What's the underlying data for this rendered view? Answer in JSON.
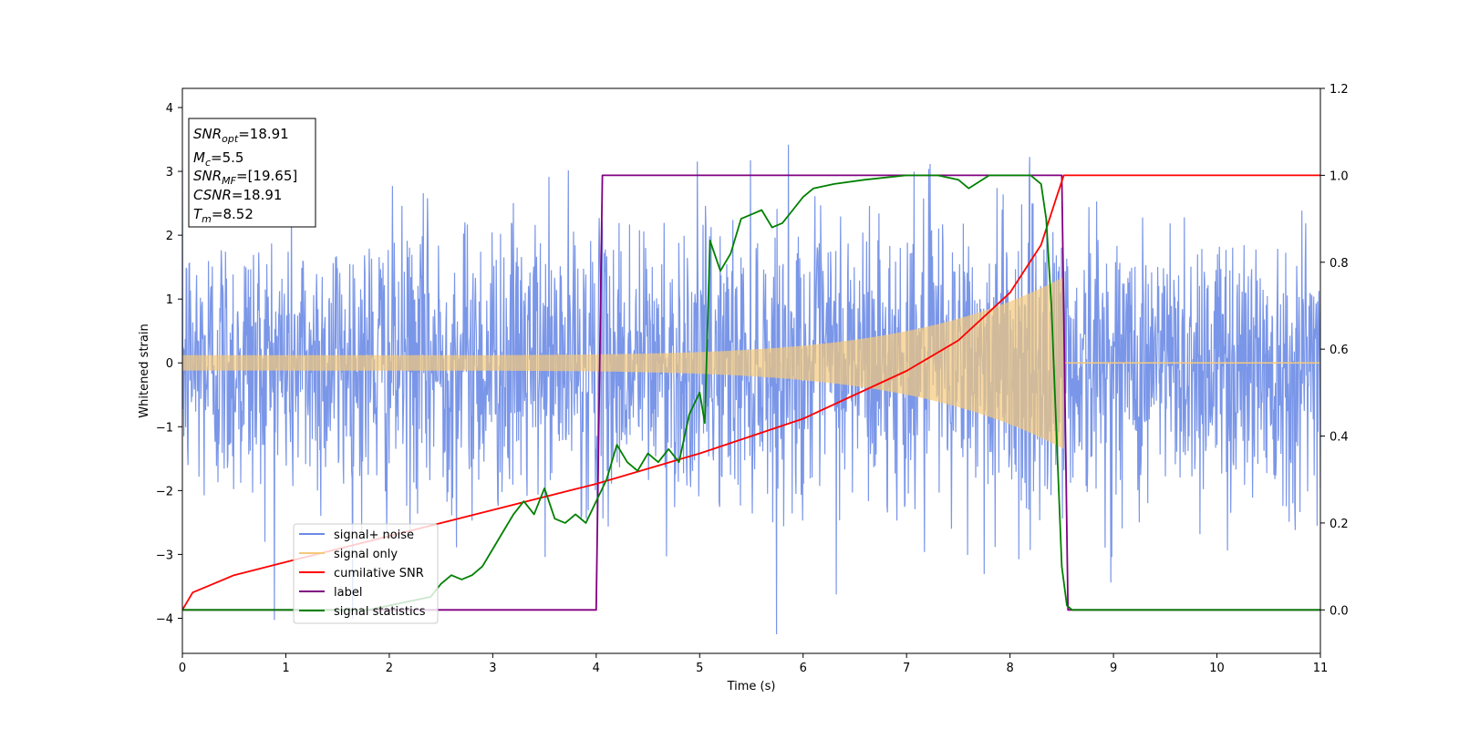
{
  "chart_data": {
    "type": "line",
    "xlabel": "Time (s)",
    "ylabel": "Whitened strain",
    "xlim": [
      0,
      11
    ],
    "ylim_left": [
      -4.55,
      4.3
    ],
    "ylim_right": [
      -0.1,
      1.2
    ],
    "x_ticks": [
      0,
      1,
      2,
      3,
      4,
      5,
      6,
      7,
      8,
      9,
      10,
      11
    ],
    "y_ticks_left": [
      4,
      3,
      2,
      1,
      0,
      -1,
      -2,
      -3,
      -4
    ],
    "y_ticks_right": [
      1.2,
      1.0,
      0.8,
      0.6,
      0.4,
      0.2,
      0.0
    ],
    "grid": false,
    "legend_position": "lower-left",
    "colors": {
      "noise": "#6b8be6",
      "signal": "#f5c97a",
      "cumulative_snr": "#ff0000",
      "label": "#800080",
      "statistics": "#008000"
    },
    "series": [
      {
        "name": "signal+ noise",
        "axis": "left",
        "description_of_values": "white noise, std ~1.1, peaks up to about ±3.9",
        "noise_std": 1.1
      },
      {
        "name": "signal only",
        "axis": "left",
        "chirp_start": 0,
        "merger_time": 8.52,
        "amplitude_start": 0.12,
        "amplitude_end": 1.35
      },
      {
        "name": "cumilative SNR",
        "axis": "right",
        "points": [
          [
            0,
            0.0
          ],
          [
            0.1,
            0.04
          ],
          [
            0.5,
            0.08
          ],
          [
            1,
            0.11
          ],
          [
            2,
            0.17
          ],
          [
            3,
            0.23
          ],
          [
            4,
            0.29
          ],
          [
            5,
            0.36
          ],
          [
            6,
            0.44
          ],
          [
            7,
            0.55
          ],
          [
            7.5,
            0.62
          ],
          [
            8,
            0.73
          ],
          [
            8.3,
            0.84
          ],
          [
            8.45,
            0.95
          ],
          [
            8.52,
            1.0
          ],
          [
            11,
            1.0
          ]
        ]
      },
      {
        "name": "label",
        "axis": "right",
        "points": [
          [
            0,
            0.0
          ],
          [
            4.0,
            0.0
          ],
          [
            4.06,
            1.0
          ],
          [
            8.5,
            1.0
          ],
          [
            8.56,
            0.0
          ],
          [
            11,
            0.0
          ]
        ]
      },
      {
        "name": "signal statistics",
        "axis": "right",
        "points": [
          [
            0,
            0.0
          ],
          [
            1,
            0.0
          ],
          [
            1.8,
            0.0
          ],
          [
            2.2,
            0.02
          ],
          [
            2.4,
            0.03
          ],
          [
            2.5,
            0.06
          ],
          [
            2.6,
            0.08
          ],
          [
            2.7,
            0.07
          ],
          [
            2.8,
            0.08
          ],
          [
            2.9,
            0.1
          ],
          [
            3.0,
            0.14
          ],
          [
            3.1,
            0.18
          ],
          [
            3.2,
            0.22
          ],
          [
            3.3,
            0.25
          ],
          [
            3.4,
            0.22
          ],
          [
            3.5,
            0.28
          ],
          [
            3.6,
            0.21
          ],
          [
            3.7,
            0.2
          ],
          [
            3.8,
            0.22
          ],
          [
            3.9,
            0.2
          ],
          [
            4.0,
            0.25
          ],
          [
            4.1,
            0.3
          ],
          [
            4.2,
            0.38
          ],
          [
            4.3,
            0.34
          ],
          [
            4.4,
            0.32
          ],
          [
            4.5,
            0.36
          ],
          [
            4.6,
            0.34
          ],
          [
            4.7,
            0.37
          ],
          [
            4.8,
            0.34
          ],
          [
            4.9,
            0.45
          ],
          [
            5.0,
            0.5
          ],
          [
            5.05,
            0.43
          ],
          [
            5.1,
            0.85
          ],
          [
            5.2,
            0.78
          ],
          [
            5.3,
            0.82
          ],
          [
            5.4,
            0.9
          ],
          [
            5.5,
            0.91
          ],
          [
            5.6,
            0.92
          ],
          [
            5.7,
            0.88
          ],
          [
            5.8,
            0.89
          ],
          [
            5.9,
            0.92
          ],
          [
            6.0,
            0.95
          ],
          [
            6.1,
            0.97
          ],
          [
            6.3,
            0.98
          ],
          [
            6.6,
            0.99
          ],
          [
            7.0,
            1.0
          ],
          [
            7.3,
            1.0
          ],
          [
            7.5,
            0.99
          ],
          [
            7.6,
            0.97
          ],
          [
            7.8,
            1.0
          ],
          [
            8.2,
            1.0
          ],
          [
            8.3,
            0.98
          ],
          [
            8.35,
            0.9
          ],
          [
            8.4,
            0.7
          ],
          [
            8.45,
            0.4
          ],
          [
            8.5,
            0.1
          ],
          [
            8.55,
            0.01
          ],
          [
            8.6,
            0.0
          ],
          [
            11,
            0.0
          ]
        ]
      }
    ],
    "legend": [
      "signal+ noise",
      "signal only",
      "cumilative SNR",
      "label",
      "signal statistics"
    ]
  },
  "annotation": {
    "snr_opt": {
      "base": "SNR",
      "sub": "opt",
      "value": "=18.91"
    },
    "mc": {
      "base": "M",
      "sub": "c",
      "value": "=5.5"
    },
    "snr_mf": {
      "base": "SNR",
      "sub": "MF",
      "value": "=[19.65]"
    },
    "csnr": {
      "base": "CSNR",
      "value": "=18.91"
    },
    "tm": {
      "base": "T",
      "sub": "m",
      "value": "=8.52"
    }
  }
}
